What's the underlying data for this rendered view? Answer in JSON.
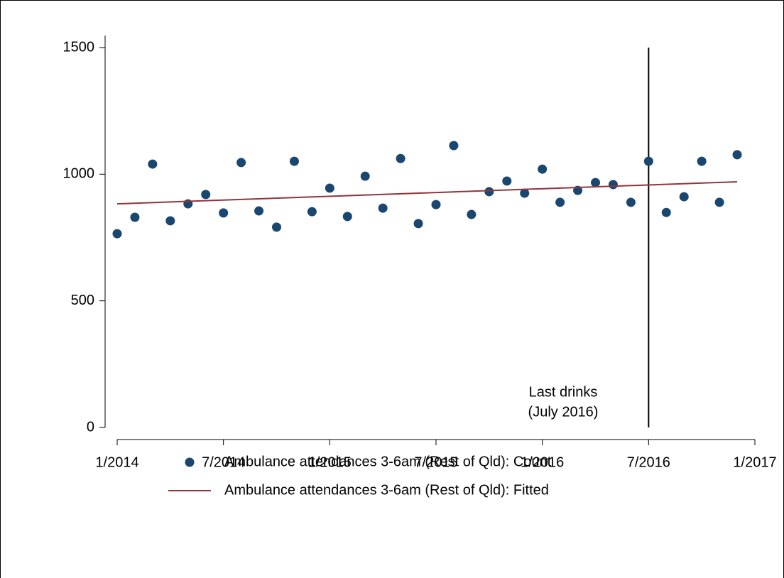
{
  "chart_data": {
    "type": "scatter",
    "x": [
      "1/2014",
      "2/2014",
      "3/2014",
      "4/2014",
      "5/2014",
      "6/2014",
      "7/2014",
      "8/2014",
      "9/2014",
      "10/2014",
      "11/2014",
      "12/2014",
      "1/2015",
      "2/2015",
      "3/2015",
      "4/2015",
      "5/2015",
      "6/2015",
      "7/2015",
      "8/2015",
      "9/2015",
      "10/2015",
      "11/2015",
      "12/2015",
      "1/2016",
      "2/2016",
      "3/2016",
      "4/2016",
      "5/2016",
      "6/2016",
      "7/2016",
      "8/2016",
      "9/2016",
      "10/2016",
      "11/2016",
      "12/2016"
    ],
    "series": [
      {
        "name": "Ambulance attendances 3-6am (Rest of Qld): Count",
        "color": "#1a476f",
        "values": [
          765,
          830,
          1040,
          816,
          883,
          920,
          847,
          1046,
          855,
          791,
          1051,
          852,
          945,
          833,
          992,
          866,
          1062,
          805,
          880,
          1113,
          841,
          931,
          973,
          925,
          1020,
          889,
          936,
          967,
          959,
          889,
          1051,
          849,
          911,
          1051,
          889,
          1077
        ]
      },
      {
        "name": "Ambulance attendances 3-6am (Rest of Qld): Fitted",
        "color": "#90353b",
        "type": "line",
        "x": [
          "1/2014",
          "12/2016"
        ],
        "values": [
          883,
          970
        ]
      }
    ],
    "xlim": [
      "1/2014",
      "1/2017"
    ],
    "xticks": [
      "1/2014",
      "7/2014",
      "1/2015",
      "7/2015",
      "1/2016",
      "7/2016",
      "1/2017"
    ],
    "ylim": [
      0,
      1500
    ],
    "yticks": [
      0,
      500,
      1000,
      1500
    ],
    "annotation": {
      "x": "7/2016",
      "text": [
        "Last drinks",
        "(July 2016)"
      ]
    },
    "legend": "bottom"
  }
}
